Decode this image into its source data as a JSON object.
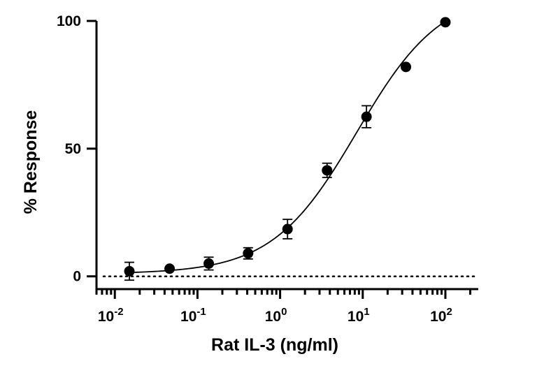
{
  "chart_data": {
    "type": "scatter",
    "xlabel": "Rat IL-3 (ng/ml)",
    "ylabel": "% Response",
    "x_scale": "log",
    "xlim": [
      0.006,
      250
    ],
    "ylim": [
      -5,
      100
    ],
    "x_ticks": [
      {
        "value": 0.01,
        "base": "10",
        "exp": "-2"
      },
      {
        "value": 0.1,
        "base": "10",
        "exp": "-1"
      },
      {
        "value": 1,
        "base": "10",
        "exp": "0"
      },
      {
        "value": 10,
        "base": "10",
        "exp": "1"
      },
      {
        "value": 100,
        "base": "10",
        "exp": "2"
      }
    ],
    "y_ticks": [
      {
        "value": 0,
        "label": "0"
      },
      {
        "value": 50,
        "label": "50"
      },
      {
        "value": 100,
        "label": "100"
      }
    ],
    "points": [
      {
        "x": 0.015,
        "y": 2,
        "err": 3.5
      },
      {
        "x": 0.046,
        "y": 3,
        "err": 0
      },
      {
        "x": 0.137,
        "y": 5,
        "err": 2.5
      },
      {
        "x": 0.41,
        "y": 9,
        "err": 2.2
      },
      {
        "x": 1.23,
        "y": 18.5,
        "err": 3.8
      },
      {
        "x": 3.7,
        "y": 41.5,
        "err": 2.8
      },
      {
        "x": 11.1,
        "y": 62.5,
        "err": 4.3
      },
      {
        "x": 33.3,
        "y": 82,
        "err": 0
      },
      {
        "x": 100,
        "y": 99.5,
        "err": 0
      }
    ],
    "fit": {
      "model": "4PL",
      "bottom": 1,
      "top": 112,
      "ec50": 8.5,
      "hill": 0.85
    },
    "baseline_y": 0,
    "grid": false,
    "legend": "none"
  }
}
